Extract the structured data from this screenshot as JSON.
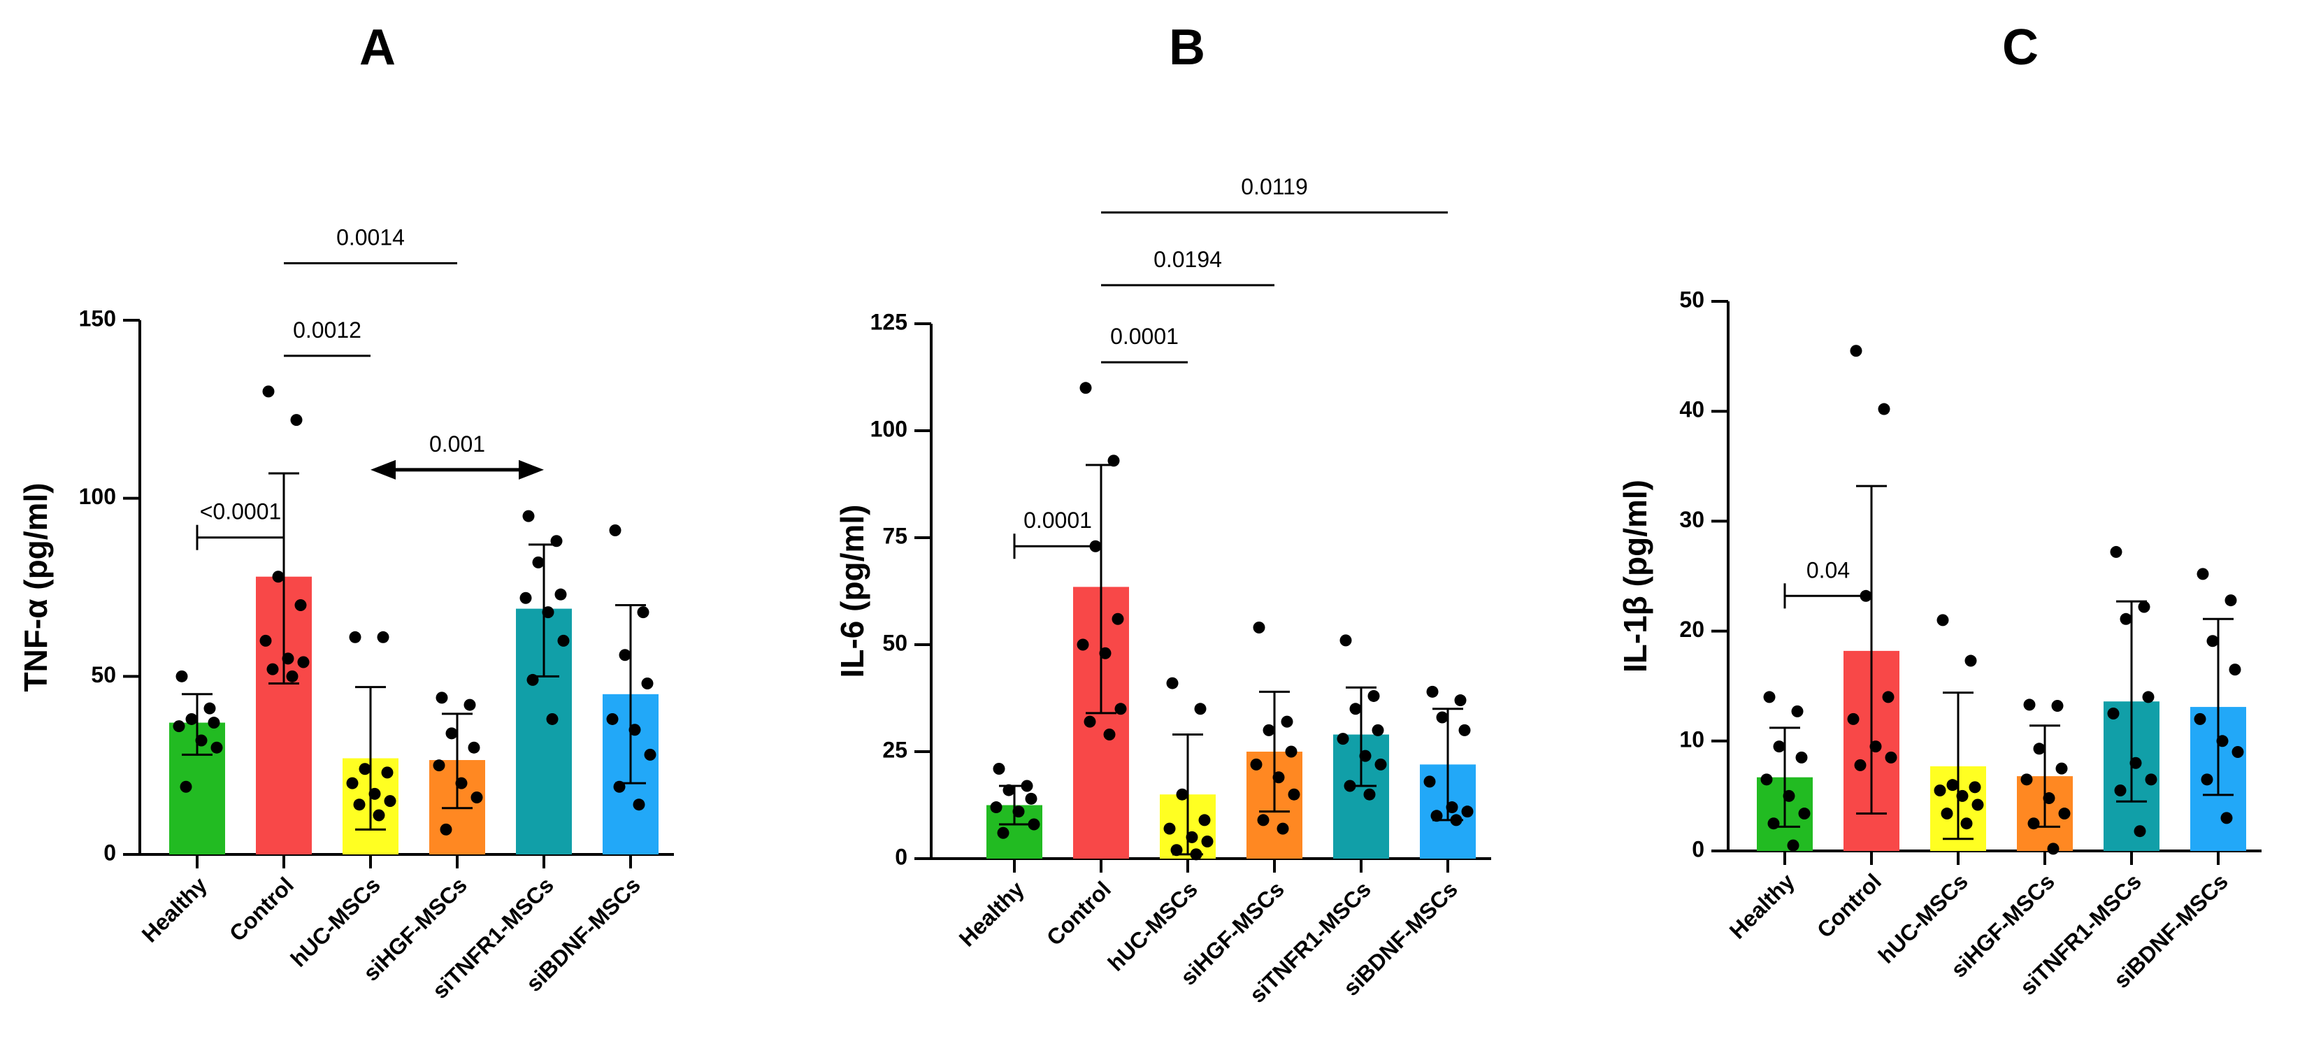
{
  "chart_data": [
    {
      "type": "bar",
      "panel": "A",
      "ylabel": "TNF-α (pg/ml)",
      "ylim": [
        0,
        150
      ],
      "yticks": [
        0,
        50,
        100,
        150
      ],
      "categories": [
        "Healthy",
        "Control",
        "hUC-MSCs",
        "siHGF-MSCs",
        "siTNFR1-MSCs",
        "siBDNF-MSCs"
      ],
      "colors": [
        "#22bb22",
        "#f84848",
        "#ffff22",
        "#ff8822",
        "#119fa8",
        "#22a8f8"
      ],
      "values": [
        37,
        78,
        27,
        26.5,
        69,
        45
      ],
      "error_low": [
        28,
        48,
        7,
        13,
        50,
        20
      ],
      "error_high": [
        45,
        107,
        47,
        39.5,
        87,
        70
      ],
      "points": [
        [
          50,
          41,
          38,
          37,
          36,
          32,
          30,
          19
        ],
        [
          130,
          122,
          78,
          70,
          60,
          55,
          54,
          52,
          50
        ],
        [
          61,
          61,
          24,
          23,
          20,
          17,
          15,
          14,
          11
        ],
        [
          44,
          42,
          34,
          30,
          25,
          20,
          16,
          7
        ],
        [
          95,
          88,
          82,
          73,
          72,
          68,
          60,
          49,
          38
        ],
        [
          91,
          68,
          56,
          48,
          38,
          35,
          28,
          19,
          14
        ]
      ],
      "comparisons": [
        {
          "from": 0,
          "to": 1,
          "label": "<0.0001",
          "y": 89,
          "style": "bracket"
        },
        {
          "from": 1,
          "to": 2,
          "label": "0.0012",
          "y": 140,
          "style": "line"
        },
        {
          "from": 1,
          "to": 3,
          "label": "0.0014",
          "y": 166,
          "style": "line"
        },
        {
          "from": 2,
          "to": 4,
          "label": "0.001",
          "y": 108,
          "style": "arrow"
        }
      ]
    },
    {
      "type": "bar",
      "panel": "B",
      "ylabel": "IL-6 (pg/ml)",
      "ylim": [
        0,
        125
      ],
      "yticks": [
        0,
        25,
        50,
        75,
        100,
        125
      ],
      "categories": [
        "Healthy",
        "Control",
        "hUC-MSCs",
        "siHGF-MSCs",
        "siTNFR1-MSCs",
        "siBDNF-MSCs"
      ],
      "colors": [
        "#22bb22",
        "#f84848",
        "#ffff22",
        "#ff8822",
        "#119fa8",
        "#22a8f8"
      ],
      "values": [
        12.5,
        63.5,
        15,
        25,
        29,
        22
      ],
      "error_low": [
        8,
        34,
        1,
        11,
        17,
        9
      ],
      "error_high": [
        17,
        92,
        29,
        39,
        40,
        35
      ],
      "points": [
        [
          21,
          17,
          16,
          14,
          12,
          11,
          8,
          6
        ],
        [
          110,
          93,
          73,
          56,
          50,
          48,
          35,
          32,
          29
        ],
        [
          41,
          35,
          15,
          9,
          7,
          5,
          4,
          2,
          1
        ],
        [
          54,
          32,
          30,
          25,
          22,
          19,
          15,
          9,
          7
        ],
        [
          51,
          38,
          35,
          30,
          28,
          24,
          22,
          17,
          15
        ],
        [
          39,
          37,
          33,
          30,
          18,
          12,
          11,
          10,
          9
        ]
      ],
      "comparisons": [
        {
          "from": 0,
          "to": 1,
          "label": "0.0001",
          "y": 73,
          "style": "bracket"
        },
        {
          "from": 1,
          "to": 2,
          "label": "0.0001",
          "y": 116,
          "style": "line"
        },
        {
          "from": 1,
          "to": 3,
          "label": "0.0194",
          "y": 134,
          "style": "line"
        },
        {
          "from": 1,
          "to": 5,
          "label": "0.0119",
          "y": 151,
          "style": "line"
        }
      ]
    },
    {
      "type": "bar",
      "panel": "C",
      "ylabel": "IL-1β (pg/ml)",
      "ylim": [
        0,
        50
      ],
      "yticks": [
        0,
        10,
        20,
        30,
        40,
        50
      ],
      "categories": [
        "Healthy",
        "Control",
        "hUC-MSCs",
        "siHGF-MSCs",
        "siTNFR1-MSCs",
        "siBDNF-MSCs"
      ],
      "colors": [
        "#22bb22",
        "#f84848",
        "#ffff22",
        "#ff8822",
        "#119fa8",
        "#22a8f8"
      ],
      "values": [
        6.7,
        18.2,
        7.7,
        6.8,
        13.6,
        13.1
      ],
      "error_low": [
        2.2,
        3.4,
        1.1,
        2.2,
        4.5,
        5.1
      ],
      "error_high": [
        11.2,
        33.2,
        14.4,
        11.4,
        22.7,
        21.1
      ],
      "points": [
        [
          14,
          12.7,
          9.5,
          8.5,
          6.5,
          5,
          3.4,
          2.5,
          0.5
        ],
        [
          45.5,
          40.2,
          23.2,
          14,
          12,
          9.5,
          8.5,
          7.8
        ],
        [
          21,
          17.3,
          6,
          5.8,
          5.5,
          5,
          4.2,
          3.4,
          2.5
        ],
        [
          13.3,
          13.2,
          9.3,
          7.5,
          6.5,
          4.8,
          3.4,
          2.5,
          0.2
        ],
        [
          27.2,
          22.2,
          21.1,
          14,
          12.5,
          8,
          6.5,
          5.5,
          1.8
        ],
        [
          25.2,
          22.8,
          19.1,
          16.5,
          12,
          10,
          9,
          6.5,
          3
        ]
      ],
      "comparisons": [
        {
          "from": 0,
          "to": 1,
          "label": "0.04",
          "y": 23.2,
          "style": "bracket"
        }
      ]
    }
  ]
}
